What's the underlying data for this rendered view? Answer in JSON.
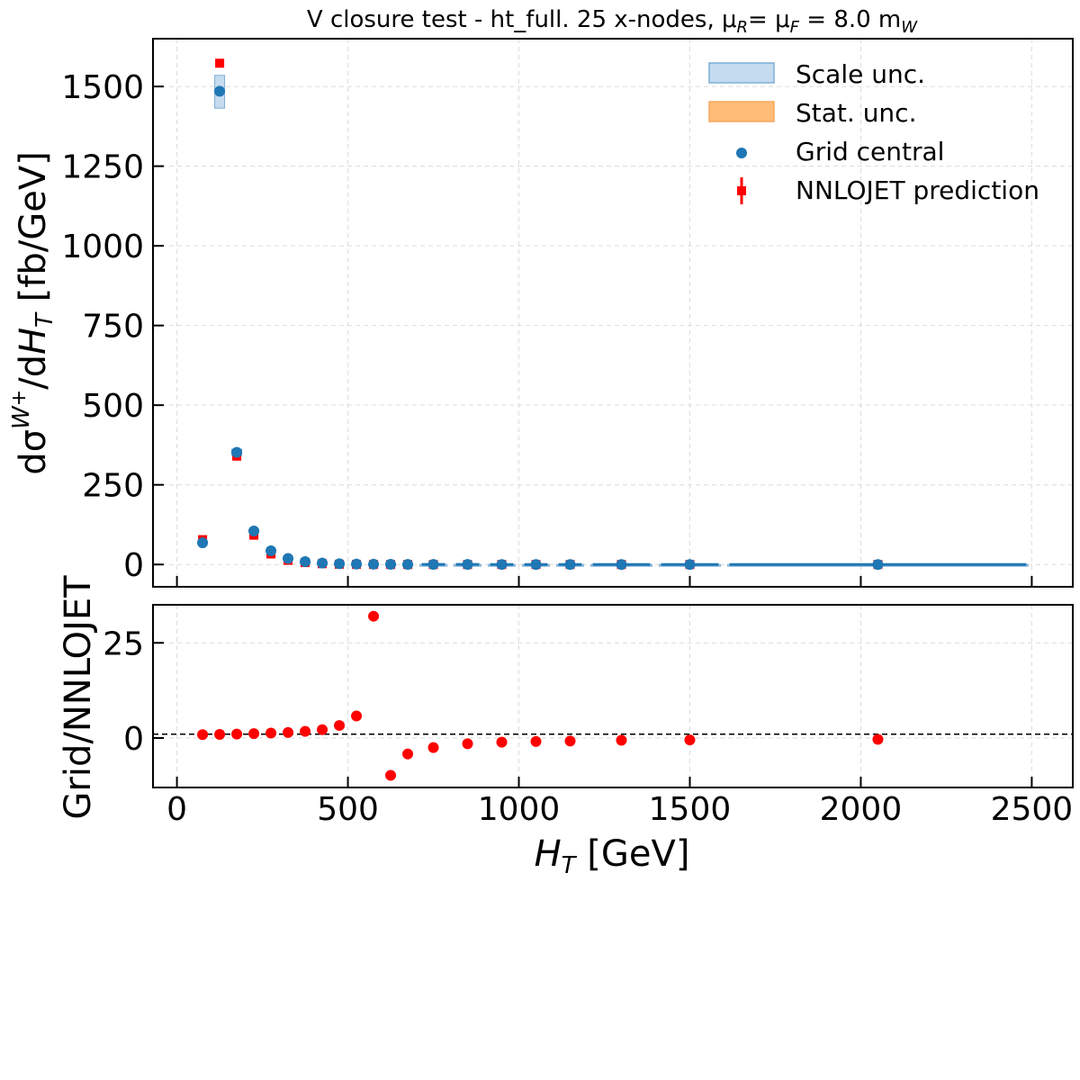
{
  "chart_data": [
    {
      "type": "scatter",
      "title_parts": [
        "V closure test  -  ht_full. 25 x-nodes, μ",
        "R",
        "= μ",
        "F",
        " = 8.0 m",
        "W"
      ],
      "ylabel_parts": [
        "dσ",
        "W",
        "+",
        "/d",
        "H",
        "T",
        "  [fb/GeV]"
      ],
      "ylim": [
        -70,
        1650
      ],
      "xlim": [
        -70,
        2620
      ],
      "yticks": [
        0,
        250,
        500,
        750,
        1000,
        1250,
        1500
      ],
      "xticks": [
        0,
        500,
        1000,
        1500,
        2000,
        2500
      ],
      "grid": true,
      "legend_position": "top-right",
      "legend": [
        "Scale unc.",
        "Stat. unc.",
        "Grid central",
        "NNLOJET prediction"
      ],
      "colors": {
        "grid": "#1f77b4",
        "scale_band": "#a6c8e6",
        "stat_band": "#ffbb78",
        "nnlojet": "#ff0000",
        "ratio": "#ff0000"
      },
      "bins": [
        [
          50,
          100
        ],
        [
          100,
          150
        ],
        [
          150,
          200
        ],
        [
          200,
          250
        ],
        [
          250,
          300
        ],
        [
          300,
          350
        ],
        [
          350,
          400
        ],
        [
          400,
          450
        ],
        [
          450,
          500
        ],
        [
          500,
          550
        ],
        [
          550,
          600
        ],
        [
          600,
          650
        ],
        [
          650,
          700
        ],
        [
          700,
          800
        ],
        [
          800,
          900
        ],
        [
          900,
          1000
        ],
        [
          1000,
          1100
        ],
        [
          1100,
          1200
        ],
        [
          1200,
          1400
        ],
        [
          1400,
          1600
        ],
        [
          1600,
          2500
        ]
      ],
      "series": [
        {
          "name": "Grid central",
          "x": [
            75,
            125,
            175,
            225,
            275,
            325,
            375,
            425,
            475,
            525,
            575,
            625,
            675,
            750,
            850,
            950,
            1050,
            1150,
            1300,
            1500,
            2050
          ],
          "values": [
            68,
            1485,
            352,
            105,
            43,
            19,
            9,
            4.5,
            2.5,
            1.3,
            0.8,
            0.5,
            0.3,
            0.2,
            0.1,
            0.06,
            0.04,
            0.03,
            0.02,
            0.01,
            0.002
          ],
          "scale_unc_low": [
            66,
            1432,
            342,
            101,
            41,
            18,
            8.5,
            4.2,
            2.3,
            1.2,
            0.7,
            0.45,
            0.27,
            0.18,
            0.09,
            0.05,
            0.035,
            0.025,
            0.015,
            0.008,
            0.001
          ],
          "scale_unc_high": [
            72,
            1535,
            362,
            110,
            45,
            20,
            9.5,
            4.8,
            2.7,
            1.4,
            0.9,
            0.55,
            0.33,
            0.22,
            0.11,
            0.07,
            0.045,
            0.035,
            0.025,
            0.012,
            0.003
          ]
        },
        {
          "name": "NNLOJET prediction",
          "x": [
            75,
            125,
            175,
            225,
            275,
            325,
            375,
            425,
            475,
            525,
            575,
            625,
            675,
            750,
            850,
            950,
            1050,
            1150,
            1300,
            1500,
            2050
          ],
          "values": [
            78,
            1573,
            340,
            92,
            33,
            13,
            6,
            2.5,
            0.8,
            0.2,
            0.03,
            -0.05,
            -0.1,
            -0.1,
            -0.1,
            -0.05,
            -0.03,
            -0.02,
            -0.02,
            -0.01,
            -0.003
          ]
        }
      ]
    },
    {
      "type": "scatter",
      "ylabel": "Grid/NNLOJET",
      "xlabel_parts": [
        "H",
        "T",
        " [GeV]"
      ],
      "ylim": [
        -13,
        35
      ],
      "yticks": [
        0,
        25
      ],
      "xticks": [
        0,
        500,
        1000,
        1500,
        2000,
        2500
      ],
      "reference_line": 1,
      "series": [
        {
          "name": "Grid/NNLOJET",
          "x": [
            75,
            125,
            175,
            225,
            275,
            325,
            375,
            425,
            475,
            525,
            575,
            625,
            675,
            750,
            850,
            950,
            1050,
            1150,
            1300,
            1500,
            2050
          ],
          "values": [
            0.9,
            0.95,
            1.05,
            1.15,
            1.3,
            1.45,
            1.75,
            2.2,
            3.3,
            5.8,
            32,
            -9.8,
            -4.2,
            -2.5,
            -1.5,
            -1.1,
            -0.9,
            -0.8,
            -0.6,
            -0.5,
            -0.35
          ]
        }
      ]
    }
  ]
}
